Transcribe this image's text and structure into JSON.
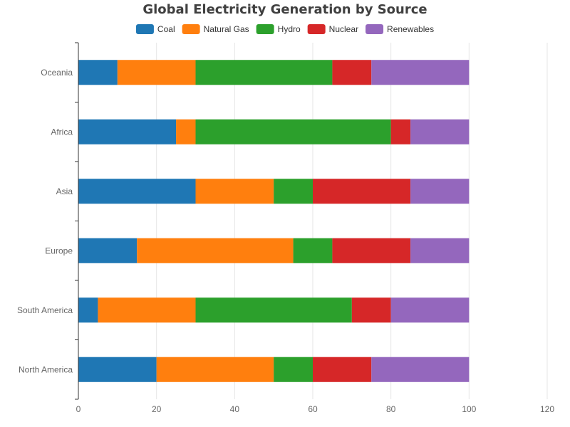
{
  "chart_data": {
    "type": "bar",
    "orientation": "horizontal",
    "stacked": true,
    "title": "Global Electricity Generation by Source",
    "categories": [
      "North America",
      "South America",
      "Europe",
      "Asia",
      "Africa",
      "Oceania"
    ],
    "series": [
      {
        "name": "Coal",
        "color": "#1f77b4",
        "values": [
          20,
          5,
          15,
          30,
          25,
          10
        ]
      },
      {
        "name": "Natural Gas",
        "color": "#ff7f0e",
        "values": [
          30,
          25,
          40,
          20,
          5,
          20
        ]
      },
      {
        "name": "Hydro",
        "color": "#2ca02c",
        "values": [
          10,
          40,
          10,
          10,
          50,
          35
        ]
      },
      {
        "name": "Nuclear",
        "color": "#d62728",
        "values": [
          15,
          10,
          20,
          25,
          5,
          10
        ]
      },
      {
        "name": "Renewables",
        "color": "#9467bd",
        "values": [
          25,
          20,
          15,
          15,
          15,
          25
        ]
      }
    ],
    "xlim": [
      0,
      120
    ],
    "xticks": [
      "0",
      "20",
      "40",
      "60",
      "80",
      "100",
      "120"
    ],
    "grid": true,
    "legend_position": "top-center"
  }
}
